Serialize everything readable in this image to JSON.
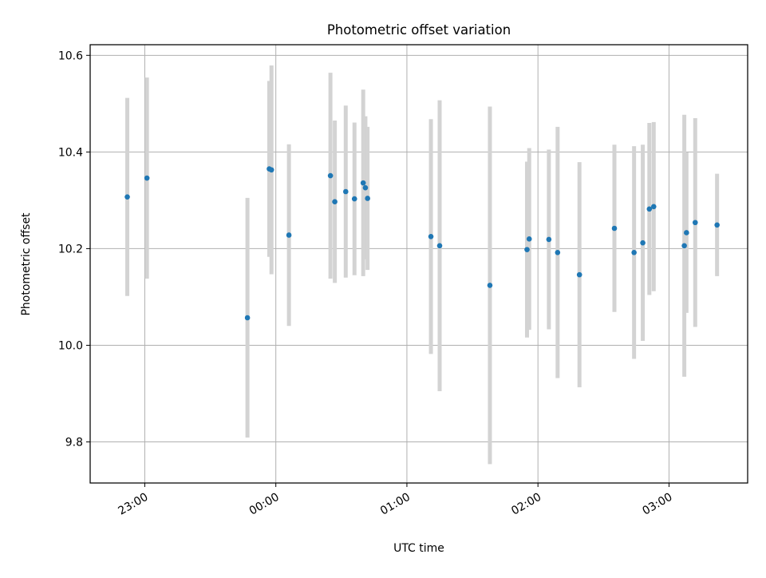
{
  "chart_data": {
    "type": "scatter",
    "title": "Photometric offset variation",
    "xlabel": "UTC time",
    "ylabel": "Photometric offset",
    "x_tick_labels": [
      "23:00",
      "00:00",
      "01:00",
      "02:00",
      "03:00"
    ],
    "x_ticks_minutes_after_2300": [
      0,
      60,
      120,
      180,
      240
    ],
    "xlim_minutes_after_2300": [
      -25,
      276
    ],
    "ylim": [
      9.715,
      10.622
    ],
    "y_ticks": [
      9.8,
      10.0,
      10.2,
      10.4,
      10.6
    ],
    "y_tick_labels": [
      "9.8",
      "10.0",
      "10.2",
      "10.4",
      "10.6"
    ],
    "grid": true,
    "point_color": "#1f77b4",
    "errorbar_color": "#d3d3d3",
    "series": [
      {
        "points": [
          {
            "t": "22:52",
            "y": 10.307,
            "err": 0.205
          },
          {
            "t": "23:01",
            "y": 10.346,
            "err": 0.208
          },
          {
            "t": "23:47",
            "y": 10.057,
            "err": 0.248
          },
          {
            "t": "23:57",
            "y": 10.365,
            "err": 0.182
          },
          {
            "t": "23:58",
            "y": 10.363,
            "err": 0.216
          },
          {
            "t": "00:06",
            "y": 10.228,
            "err": 0.188
          },
          {
            "t": "00:25",
            "y": 10.351,
            "err": 0.213
          },
          {
            "t": "00:27",
            "y": 10.297,
            "err": 0.168
          },
          {
            "t": "00:32",
            "y": 10.318,
            "err": 0.178
          },
          {
            "t": "00:36",
            "y": 10.303,
            "err": 0.158
          },
          {
            "t": "00:40",
            "y": 10.336,
            "err": 0.193
          },
          {
            "t": "00:41",
            "y": 10.326,
            "err": 0.148
          },
          {
            "t": "00:42",
            "y": 10.304,
            "err": 0.148
          },
          {
            "t": "01:11",
            "y": 10.225,
            "err": 0.243
          },
          {
            "t": "01:15",
            "y": 10.206,
            "err": 0.301
          },
          {
            "t": "01:38",
            "y": 10.124,
            "err": 0.37
          },
          {
            "t": "01:55",
            "y": 10.198,
            "err": 0.182
          },
          {
            "t": "01:56",
            "y": 10.22,
            "err": 0.188
          },
          {
            "t": "02:05",
            "y": 10.219,
            "err": 0.186
          },
          {
            "t": "02:09",
            "y": 10.192,
            "err": 0.26
          },
          {
            "t": "02:19",
            "y": 10.146,
            "err": 0.233
          },
          {
            "t": "02:35",
            "y": 10.242,
            "err": 0.173
          },
          {
            "t": "02:44",
            "y": 10.192,
            "err": 0.22
          },
          {
            "t": "02:48",
            "y": 10.212,
            "err": 0.203
          },
          {
            "t": "02:51",
            "y": 10.282,
            "err": 0.178
          },
          {
            "t": "02:53",
            "y": 10.287,
            "err": 0.175
          },
          {
            "t": "03:07",
            "y": 10.206,
            "err": 0.271
          },
          {
            "t": "03:08",
            "y": 10.233,
            "err": 0.166
          },
          {
            "t": "03:12",
            "y": 10.254,
            "err": 0.216
          },
          {
            "t": "03:22",
            "y": 10.249,
            "err": 0.106
          }
        ]
      }
    ]
  }
}
